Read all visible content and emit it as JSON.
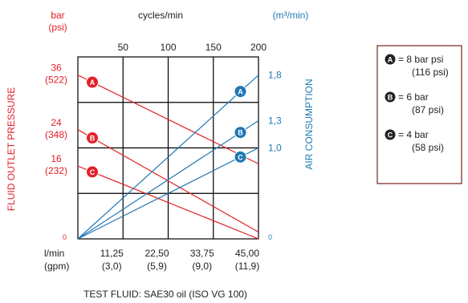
{
  "colors": {
    "pressure": "#e32028",
    "air": "#1f78b4",
    "grid": "#000000",
    "legend_border": "#7a1f1f",
    "text": "#222222"
  },
  "chart_data": {
    "type": "line",
    "top_axis": {
      "label": "cycles/min",
      "ticks": [
        "50",
        "100",
        "150",
        "200"
      ],
      "range": [
        0,
        200
      ]
    },
    "left_axis": {
      "unit_label": "bar",
      "unit_label_alt": "(psi)",
      "title": "FLUID OUTLET PRESSURE",
      "range": [
        0,
        40
      ],
      "ticks": [
        {
          "value": 36,
          "label": "36",
          "alt": "(522)"
        },
        {
          "value": 24,
          "label": "24",
          "alt": "(348)"
        },
        {
          "value": 16,
          "label": "16",
          "alt": "(232)"
        },
        {
          "value": 0,
          "label": "0",
          "alt": ""
        }
      ]
    },
    "right_axis": {
      "unit_label": "(m³/min)",
      "title": "AIR CONSUMPTION",
      "range": [
        0,
        2.0
      ],
      "ticks": [
        {
          "value": 1.8,
          "label": "1,8"
        },
        {
          "value": 1.3,
          "label": "1,3"
        },
        {
          "value": 1.0,
          "label": "1,0"
        },
        {
          "value": 0,
          "label": "0"
        }
      ]
    },
    "bottom_axis": {
      "unit_label": "l/min",
      "unit_label_alt": "(gpm)",
      "ticks": [
        {
          "label": "11,25",
          "alt": "(3,0)"
        },
        {
          "label": "22,50",
          "alt": "(5,9)"
        },
        {
          "label": "33,75",
          "alt": "(9,0)"
        },
        {
          "label": "45,00",
          "alt": "(11,9)"
        }
      ]
    },
    "series": [
      {
        "name": "A",
        "kind": "pressure",
        "x": [
          0,
          200
        ],
        "y": [
          36,
          16.5
        ]
      },
      {
        "name": "B",
        "kind": "pressure",
        "x": [
          0,
          200
        ],
        "y": [
          24,
          1.5
        ]
      },
      {
        "name": "C",
        "kind": "pressure",
        "x": [
          0,
          200
        ],
        "y": [
          16,
          0
        ]
      },
      {
        "name": "A",
        "kind": "air",
        "x": [
          0,
          200
        ],
        "y": [
          0,
          1.8
        ]
      },
      {
        "name": "B",
        "kind": "air",
        "x": [
          0,
          200
        ],
        "y": [
          0,
          1.3
        ]
      },
      {
        "name": "C",
        "kind": "air",
        "x": [
          0,
          200
        ],
        "y": [
          0,
          1.0
        ]
      }
    ],
    "legend": [
      {
        "marker": "A",
        "text": "= 8 bar psi",
        "sub": "(116 psi)"
      },
      {
        "marker": "B",
        "text": "= 6 bar",
        "sub": "(87 psi)"
      },
      {
        "marker": "C",
        "text": "= 4 bar",
        "sub": "(58 psi)"
      }
    ],
    "footer": "TEST FLUID:  SAE30 oil (ISO VG 100)",
    "grid": true
  }
}
